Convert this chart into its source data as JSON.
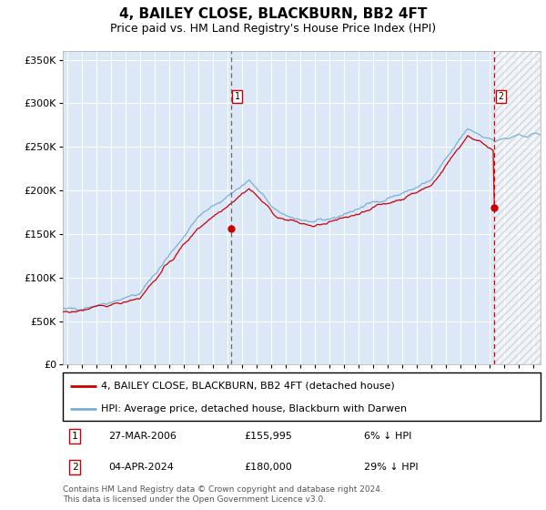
{
  "title": "4, BAILEY CLOSE, BLACKBURN, BB2 4FT",
  "subtitle": "Price paid vs. HM Land Registry's House Price Index (HPI)",
  "title_fontsize": 11,
  "subtitle_fontsize": 9,
  "ylim": [
    0,
    360000
  ],
  "xlim_start": 1994.7,
  "xlim_end": 2027.5,
  "yticks": [
    0,
    50000,
    100000,
    150000,
    200000,
    250000,
    300000,
    350000
  ],
  "ytick_labels": [
    "£0",
    "£50K",
    "£100K",
    "£150K",
    "£200K",
    "£250K",
    "£300K",
    "£350K"
  ],
  "background_color": "#dce8f8",
  "hatch_region_start": 2024.33,
  "vline1_x": 2006.23,
  "vline2_x": 2024.33,
  "point1_x": 2006.23,
  "point1_y": 155995,
  "point2_x": 2024.33,
  "point2_y": 180000,
  "sale1_date": "27-MAR-2006",
  "sale1_price": "£155,995",
  "sale1_hpi": "6% ↓ HPI",
  "sale2_date": "04-APR-2024",
  "sale2_price": "£180,000",
  "sale2_hpi": "29% ↓ HPI",
  "hpi_line_color": "#7bafd4",
  "price_line_color": "#cc0000",
  "point_color": "#cc0000",
  "vline1_color": "#666666",
  "vline2_color": "#cc0000",
  "legend_label1": "4, BAILEY CLOSE, BLACKBURN, BB2 4FT (detached house)",
  "legend_label2": "HPI: Average price, detached house, Blackburn with Darwen",
  "footer": "Contains HM Land Registry data © Crown copyright and database right 2024.\nThis data is licensed under the Open Government Licence v3.0.",
  "xticks": [
    1995,
    1996,
    1997,
    1998,
    1999,
    2000,
    2001,
    2002,
    2003,
    2004,
    2005,
    2006,
    2007,
    2008,
    2009,
    2010,
    2011,
    2012,
    2013,
    2014,
    2015,
    2016,
    2017,
    2018,
    2019,
    2020,
    2021,
    2022,
    2023,
    2024,
    2025,
    2026,
    2027
  ]
}
